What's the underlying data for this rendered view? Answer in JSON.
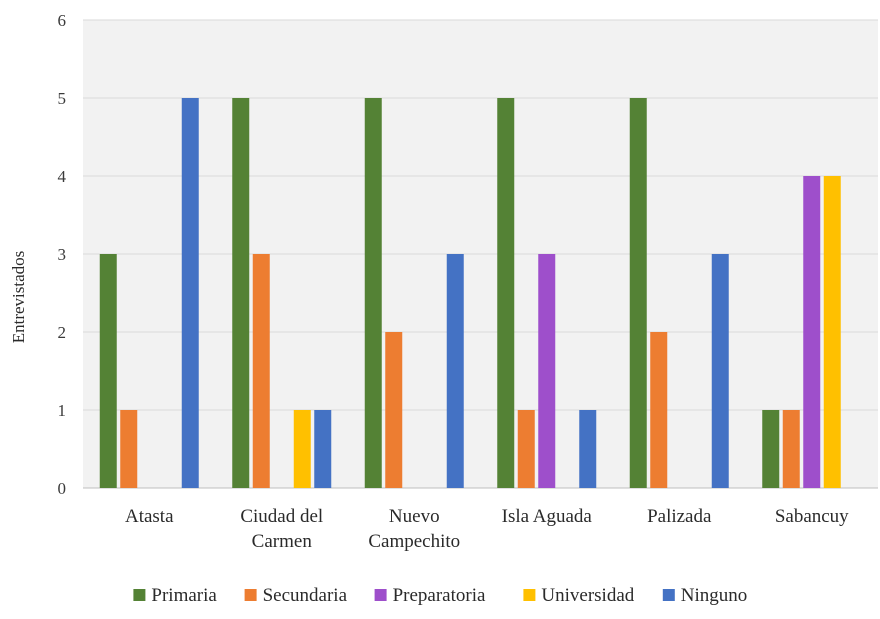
{
  "chart_data": {
    "type": "bar",
    "ylabel": "Entrevistados",
    "ylim": [
      0,
      6
    ],
    "yticks": [
      0,
      1,
      2,
      3,
      4,
      5,
      6
    ],
    "grid": true,
    "legend_position": "bottom",
    "categories": [
      [
        "Atasta"
      ],
      [
        "Ciudad del",
        "Carmen"
      ],
      [
        "Nuevo",
        "Campechito"
      ],
      [
        "Isla Aguada"
      ],
      [
        "Palizada"
      ],
      [
        "Sabancuy"
      ]
    ],
    "series": [
      {
        "name": "Primaria",
        "color": "#548235",
        "values": [
          3,
          5,
          5,
          5,
          5,
          1
        ]
      },
      {
        "name": "Secundaria",
        "color": "#ED7D31",
        "values": [
          1,
          3,
          2,
          1,
          2,
          1
        ]
      },
      {
        "name": "Preparatoria",
        "color": "#9E4FCB",
        "values": [
          0,
          0,
          0,
          3,
          0,
          4
        ]
      },
      {
        "name": "Universidad",
        "color": "#FFC000",
        "values": [
          0,
          1,
          0,
          0,
          0,
          4
        ]
      },
      {
        "name": "Ninguno",
        "color": "#4472C4",
        "values": [
          5,
          1,
          3,
          1,
          3,
          0
        ]
      }
    ]
  }
}
